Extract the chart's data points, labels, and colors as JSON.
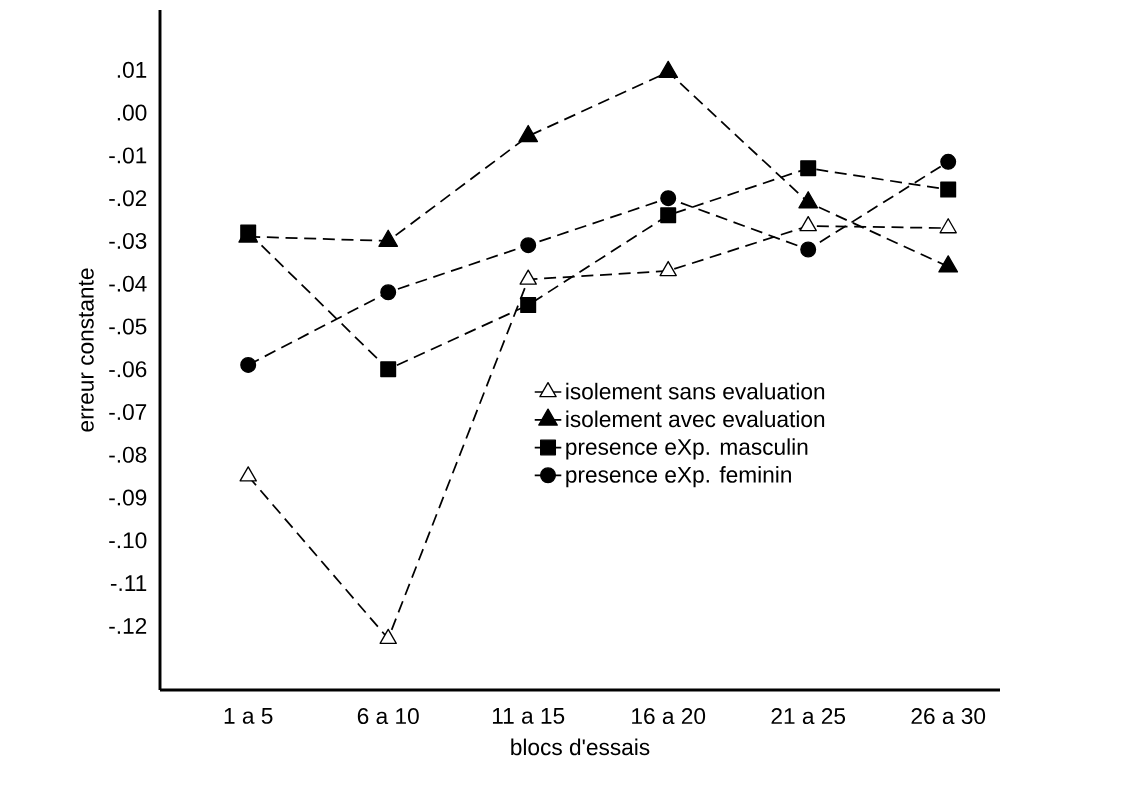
{
  "chart_data": {
    "type": "line",
    "xlabel": "blocs d'essais",
    "ylabel": "erreur constante",
    "categories": [
      "1 a 5",
      "6 a 10",
      "11 a 15",
      "16 a 20",
      "21 a 25",
      "26 a 30"
    ],
    "series": [
      {
        "name": "isolement sans evaluation",
        "color": "#000000",
        "marker": "triangle-open",
        "values": [
          -0.085,
          -0.123,
          -0.039,
          -0.037,
          -0.0265,
          -0.027
        ]
      },
      {
        "name": "isolement avec evaluation",
        "color": "#000000",
        "marker": "triangle",
        "values": [
          -0.029,
          -0.03,
          -0.0055,
          0.0095,
          -0.021,
          -0.036
        ]
      },
      {
        "name": "presence eXp. masculin",
        "color": "#000000",
        "marker": "square",
        "values": [
          -0.028,
          -0.06,
          -0.045,
          -0.024,
          -0.013,
          -0.018
        ]
      },
      {
        "name": "presence eXp. feminin",
        "color": "#000000",
        "marker": "circle",
        "values": [
          -0.059,
          -0.042,
          -0.031,
          -0.02,
          -0.032,
          -0.0115
        ]
      }
    ],
    "ylim": [
      -0.135,
      0.024
    ],
    "yticks": [
      {
        "value": 0.01,
        "label": ".01"
      },
      {
        "value": 0.0,
        "label": ".00"
      },
      {
        "value": -0.01,
        "label": "-.01"
      },
      {
        "value": -0.02,
        "label": "-.02"
      },
      {
        "value": -0.03,
        "label": "-.03"
      },
      {
        "value": -0.04,
        "label": "-.04"
      },
      {
        "value": -0.05,
        "label": "-.05"
      },
      {
        "value": -0.06,
        "label": "-.06"
      },
      {
        "value": -0.07,
        "label": "-.07"
      },
      {
        "value": -0.08,
        "label": "-.08"
      },
      {
        "value": -0.09,
        "label": "-.09"
      },
      {
        "value": -0.1,
        "label": "-.10"
      },
      {
        "value": -0.11,
        "label": "-.11"
      },
      {
        "value": -0.12,
        "label": "-.12"
      }
    ],
    "grid": false,
    "legend": "right",
    "line_style": "dashed"
  }
}
